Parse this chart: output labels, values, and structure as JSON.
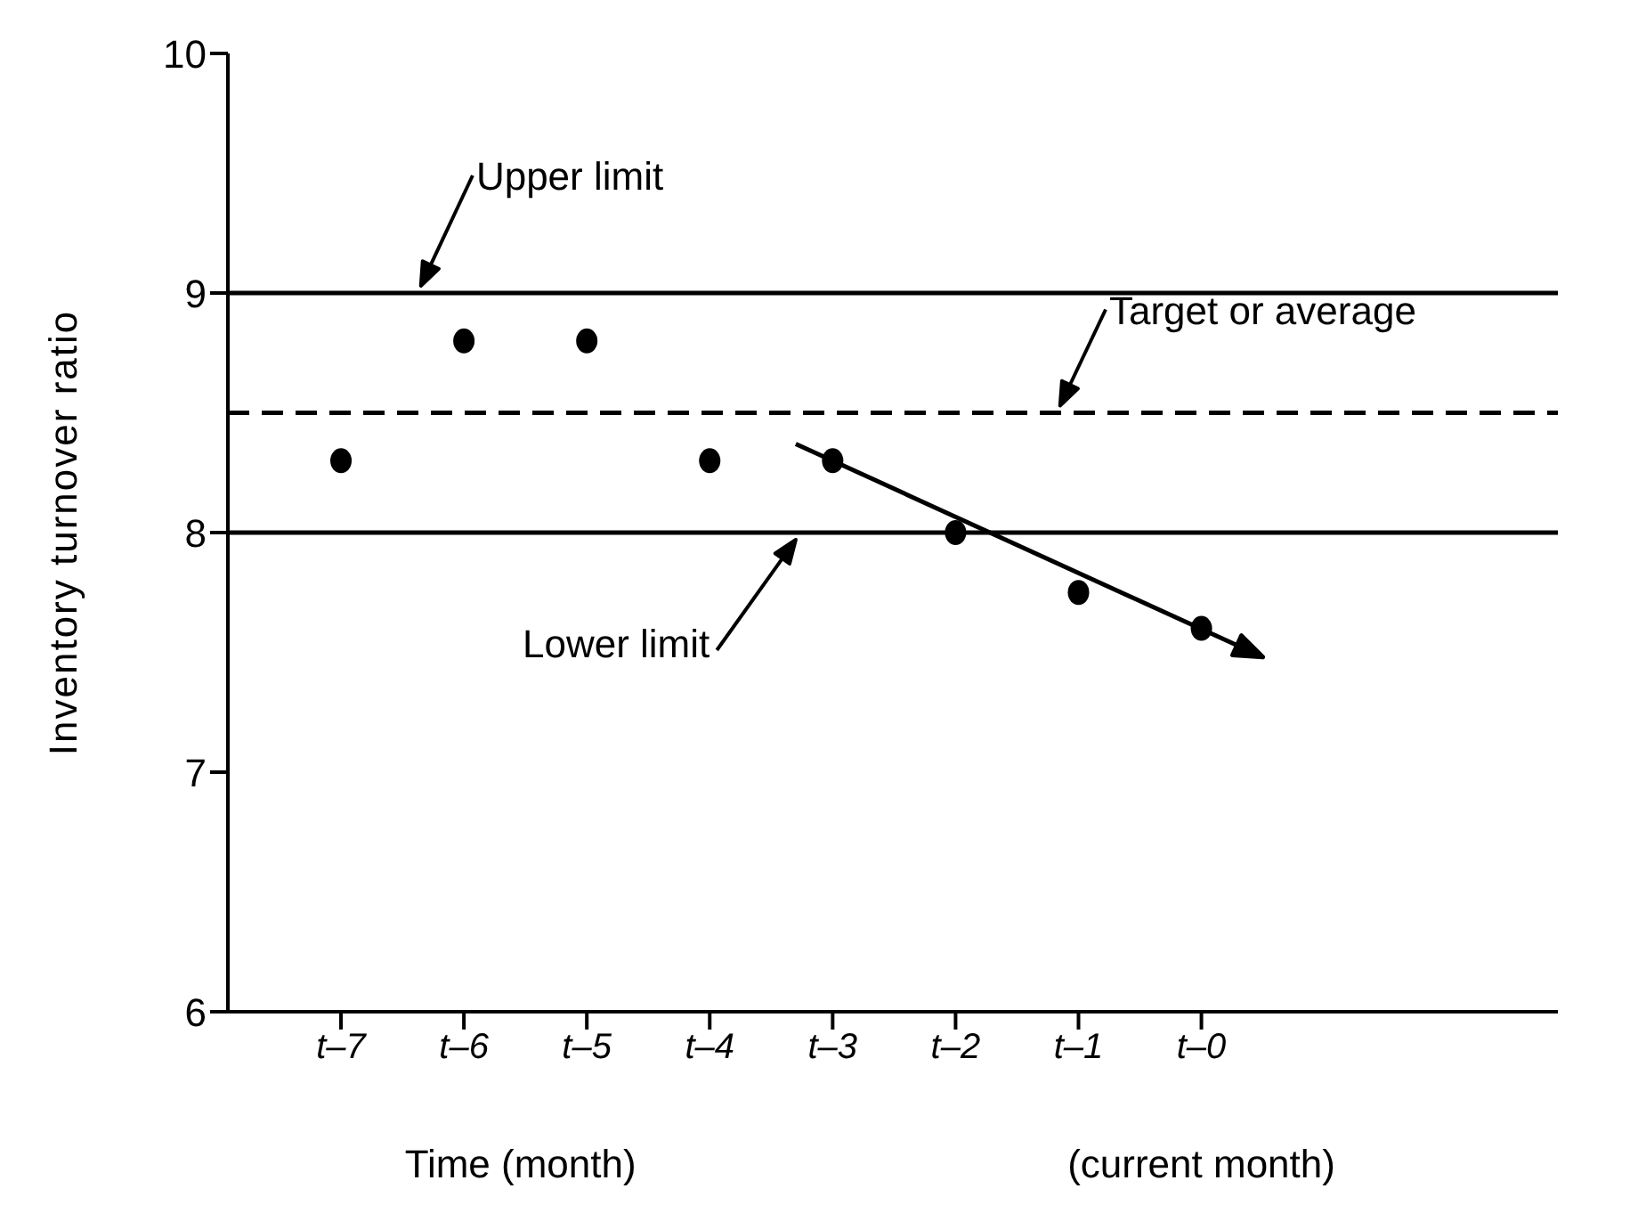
{
  "chart_data": {
    "type": "scatter",
    "xlabel": "Time (month)",
    "ylabel": "Inventory turnover ratio",
    "categories": [
      "t–7",
      "t–6",
      "t–5",
      "t–4",
      "t–3",
      "t–2",
      "t–1",
      "t–0"
    ],
    "ylim": [
      6,
      10
    ],
    "yticks": [
      6,
      7,
      8,
      9,
      10
    ],
    "series": [
      {
        "color": "#000000",
        "values": [
          8.3,
          8.8,
          8.8,
          8.3,
          8.3,
          8.0,
          7.75,
          7.6
        ]
      }
    ],
    "marker": "circle",
    "ref_lines": [
      {
        "axis": "y",
        "value": 9,
        "label": "Upper limit",
        "color": "#000000",
        "line_style": "solid"
      },
      {
        "axis": "y",
        "value": 8.5,
        "label": "Target or average",
        "color": "#000000",
        "line_style": "dashed"
      },
      {
        "axis": "y",
        "value": 8,
        "label": "Lower limit",
        "color": "#000000",
        "line_style": "solid"
      }
    ],
    "annotations": [
      "(current month)"
    ],
    "grid": false,
    "legend": false
  }
}
